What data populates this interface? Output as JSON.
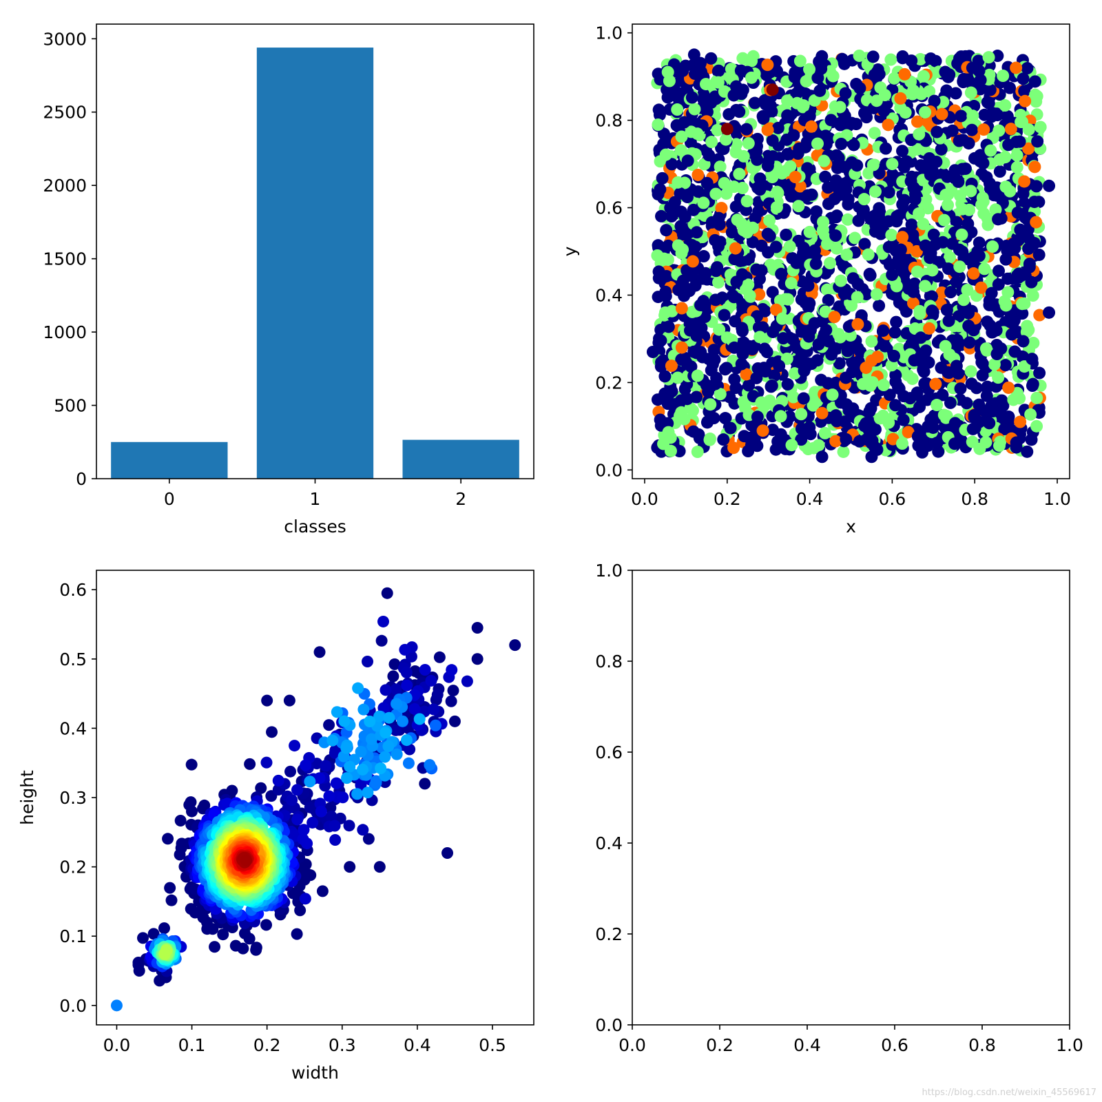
{
  "colors": {
    "bar": "#1f77b4",
    "axis": "#000000",
    "background": "#ffffff",
    "jet_class0": "#00007f",
    "jet_class1": "#7cff79",
    "jet_class2": "#ff6a00",
    "jet_class3": "#7f0000"
  },
  "watermark": "https://blog.csdn.net/weixin_45569617",
  "chart_data": [
    {
      "type": "bar",
      "position": "top-left",
      "categories": [
        "0",
        "1",
        "2"
      ],
      "values": [
        250,
        2940,
        265
      ],
      "xlabel": "classes",
      "ylabel": "",
      "ylim": [
        0,
        3100
      ],
      "xticks": [
        "0",
        "1",
        "2"
      ],
      "yticks": [
        "0",
        "500",
        "1000",
        "1500",
        "2000",
        "2500",
        "3000"
      ],
      "grid": false
    },
    {
      "type": "scatter",
      "position": "top-right",
      "xlabel": "x",
      "ylabel": "y",
      "xlim": [
        -0.03,
        1.03
      ],
      "ylim": [
        -0.02,
        1.02
      ],
      "xticks": [
        "0.0",
        "0.2",
        "0.4",
        "0.6",
        "0.8",
        "1.0"
      ],
      "yticks": [
        "0.0",
        "0.2",
        "0.4",
        "0.6",
        "0.8",
        "1.0"
      ],
      "colormap": "jet",
      "point_count": 3455,
      "x_range": [
        0.02,
        0.98
      ],
      "y_range": [
        0.03,
        0.96
      ],
      "sample_points": [
        [
          0.12,
          0.95,
          "jet_class0"
        ],
        [
          0.31,
          0.87,
          "jet_class3"
        ],
        [
          0.2,
          0.78,
          "jet_class3"
        ],
        [
          0.9,
          0.92,
          "jet_class2"
        ],
        [
          0.62,
          0.85,
          "jet_class2"
        ],
        [
          0.09,
          0.37,
          "jet_class2"
        ],
        [
          0.09,
          0.28,
          "jet_class2"
        ],
        [
          0.92,
          0.66,
          "jet_class2"
        ],
        [
          0.55,
          0.25,
          "jet_class2"
        ],
        [
          0.43,
          0.13,
          "jet_class2"
        ],
        [
          0.91,
          0.11,
          "jet_class2"
        ],
        [
          0.46,
          0.35,
          "jet_class2"
        ],
        [
          0.06,
          0.89,
          "jet_class1"
        ],
        [
          0.05,
          0.36,
          "jet_class1"
        ],
        [
          0.41,
          0.05,
          "jet_class1"
        ],
        [
          0.6,
          0.7,
          "jet_class1"
        ],
        [
          0.95,
          0.1,
          "jet_class1"
        ],
        [
          0.98,
          0.36,
          "jet_class0"
        ],
        [
          0.55,
          0.03,
          "jet_class0"
        ],
        [
          0.43,
          0.03,
          "jet_class0"
        ],
        [
          0.02,
          0.27,
          "jet_class0"
        ],
        [
          0.98,
          0.65,
          "jet_class0"
        ]
      ],
      "grid": false
    },
    {
      "type": "scatter",
      "position": "bottom-left",
      "xlabel": "width",
      "ylabel": "height",
      "xlim": [
        -0.027,
        0.555
      ],
      "ylim": [
        -0.028,
        0.628
      ],
      "xticks": [
        "0.0",
        "0.1",
        "0.2",
        "0.3",
        "0.4",
        "0.5"
      ],
      "yticks": [
        "0.0",
        "0.1",
        "0.2",
        "0.3",
        "0.4",
        "0.5",
        "0.6"
      ],
      "colormap": "jet",
      "point_count": 3455,
      "outliers": [
        [
          0.0,
          0.0
        ],
        [
          0.36,
          0.595
        ],
        [
          0.48,
          0.545
        ],
        [
          0.53,
          0.52
        ],
        [
          0.48,
          0.5
        ],
        [
          0.44,
          0.22
        ],
        [
          0.31,
          0.2
        ],
        [
          0.2,
          0.44
        ],
        [
          0.23,
          0.44
        ],
        [
          0.27,
          0.51
        ],
        [
          0.45,
          0.41
        ],
        [
          0.41,
          0.32
        ],
        [
          0.35,
          0.2
        ],
        [
          0.06,
          0.05
        ],
        [
          0.03,
          0.05
        ]
      ],
      "density_center": [
        0.17,
        0.21
      ],
      "secondary_cluster": [
        0.06,
        0.075
      ],
      "grid": false
    },
    {
      "type": "scatter",
      "position": "bottom-right",
      "xlabel": "",
      "ylabel": "",
      "xlim": [
        0,
        1
      ],
      "ylim": [
        0,
        1
      ],
      "xticks": [
        "0.0",
        "0.2",
        "0.4",
        "0.6",
        "0.8",
        "1.0"
      ],
      "yticks": [
        "0.0",
        "0.2",
        "0.4",
        "0.6",
        "0.8",
        "1.0"
      ],
      "empty": true,
      "grid": false
    }
  ]
}
